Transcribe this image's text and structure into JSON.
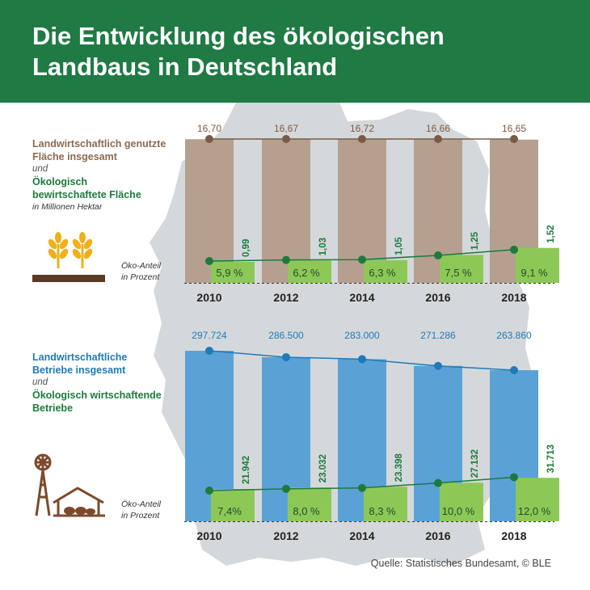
{
  "title": "Die Entwicklung des ökologischen Landbaus in Deutschland",
  "colors": {
    "header": "#1f7a44",
    "brown": "#7b5a45",
    "area_bar": "#b5a090",
    "farm_bar": "#5aa2d6",
    "blue_line": "#1f7ab8",
    "green": "#1d7a3c",
    "green_bar": "#8dc857",
    "map": "#d5d8db"
  },
  "legend1": {
    "line1": "Landwirtschaftlich genutzte Fläche insgesamt",
    "line2": "und",
    "line3": "Ökologisch bewirtschaftete Fläche",
    "line4": "in Millionen Hektar"
  },
  "legend2": {
    "line1": "Landwirtschaftliche Betriebe insgesamt",
    "line2": "und",
    "line3": "Ökologisch wirtschaftende Betriebe"
  },
  "share_label": "Öko-Anteil in Prozent",
  "source": "Quelle: Statistisches Bundesamt, © BLE",
  "chart_data": [
    {
      "type": "bar",
      "title": "Landwirtschaftlich genutzte Fläche insgesamt und Ökologisch bewirtschaftete Fläche",
      "unit": "in Millionen Hektar",
      "categories": [
        "2010",
        "2012",
        "2014",
        "2016",
        "2018"
      ],
      "series": [
        {
          "name": "Landwirtschaftlich genutzte Fläche insgesamt",
          "values": [
            16.7,
            16.67,
            16.72,
            16.66,
            16.65
          ],
          "labels": [
            "16,70",
            "16,67",
            "16,72",
            "16,66",
            "16,65"
          ]
        },
        {
          "name": "Ökologisch bewirtschaftete Fläche",
          "values": [
            0.99,
            1.03,
            1.05,
            1.25,
            1.52
          ],
          "labels": [
            "0,99",
            "1,03",
            "1,05",
            "1,25",
            "1,52"
          ]
        },
        {
          "name": "Öko-Anteil in Prozent",
          "values": [
            5.9,
            6.2,
            6.3,
            7.5,
            9.1
          ],
          "labels": [
            "5,9 %",
            "6,2 %",
            "6,3 %",
            "7,5 %",
            "9,1 %"
          ]
        }
      ]
    },
    {
      "type": "bar",
      "title": "Landwirtschaftliche Betriebe insgesamt und Ökologisch wirtschaftende Betriebe",
      "categories": [
        "2010",
        "2012",
        "2014",
        "2016",
        "2018"
      ],
      "series": [
        {
          "name": "Landwirtschaftliche Betriebe insgesamt",
          "values": [
            297724,
            286500,
            283000,
            271286,
            263860
          ],
          "labels": [
            "297.724",
            "286.500",
            "283.000",
            "271.286",
            "263.860"
          ]
        },
        {
          "name": "Ökologisch wirtschaftende Betriebe",
          "values": [
            21942,
            23032,
            23398,
            27132,
            31713
          ],
          "labels": [
            "21.942",
            "23.032",
            "23.398",
            "27.132",
            "31.713"
          ]
        },
        {
          "name": "Öko-Anteil in Prozent",
          "values": [
            7.4,
            8.0,
            8.3,
            10.0,
            12.0
          ],
          "labels": [
            "7,4%",
            "8,0 %",
            "8,3 %",
            "10,0 %",
            "12,0 %"
          ]
        }
      ]
    }
  ]
}
